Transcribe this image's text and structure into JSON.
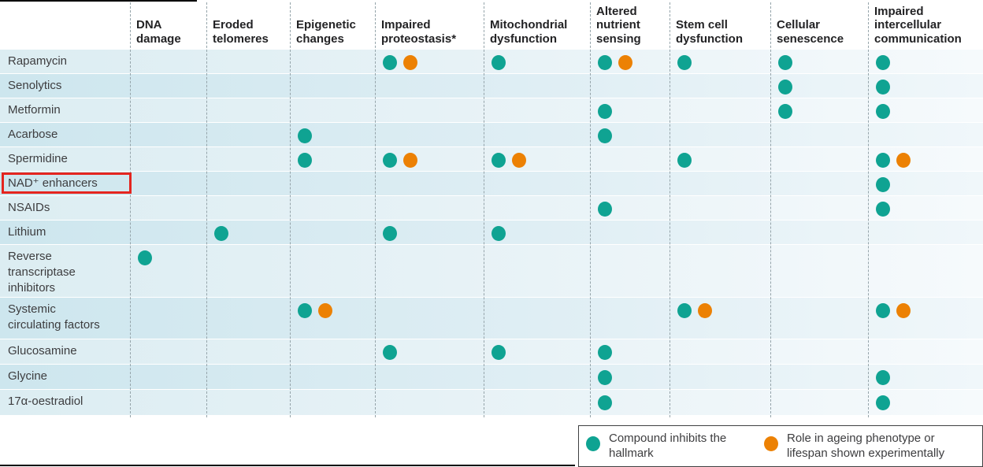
{
  "figure_title": "",
  "chart_data": {
    "type": "table",
    "title": "",
    "columns": [
      "DNA damage",
      "Eroded telomeres",
      "Epigenetic changes",
      "Impaired proteostasis*",
      "Mitochondrial dysfunction",
      "Altered nutrient sensing",
      "Stem cell dysfunction",
      "Cellular senescence",
      "Impaired intercellular communication"
    ],
    "cell_codes": {
      "T": "Compound inhibits the hallmark",
      "TO": "Compound inhibits the hallmark + Role in ageing phenotype or lifespan shown experimentally"
    },
    "rows": [
      {
        "label": "Rapamycin",
        "cells": [
          "",
          "",
          "",
          "TO",
          "T",
          "TO",
          "T",
          "T",
          "T"
        ]
      },
      {
        "label": "Senolytics",
        "cells": [
          "",
          "",
          "",
          "",
          "",
          "",
          "",
          "T",
          "T"
        ]
      },
      {
        "label": "Metformin",
        "cells": [
          "",
          "",
          "",
          "",
          "",
          "T",
          "",
          "T",
          "T"
        ]
      },
      {
        "label": "Acarbose",
        "cells": [
          "",
          "",
          "T",
          "",
          "",
          "T",
          "",
          "",
          ""
        ]
      },
      {
        "label": "Spermidine",
        "cells": [
          "",
          "",
          "T",
          "TO",
          "TO",
          "",
          "T",
          "",
          "TO"
        ]
      },
      {
        "label": "NAD⁺ enhancers",
        "cells": [
          "",
          "",
          "",
          "",
          "",
          "",
          "",
          "",
          "T"
        ]
      },
      {
        "label": "NSAIDs",
        "cells": [
          "",
          "",
          "",
          "",
          "",
          "T",
          "",
          "",
          "T"
        ]
      },
      {
        "label": "Lithium",
        "cells": [
          "",
          "T",
          "",
          "T",
          "T",
          "",
          "",
          "",
          ""
        ]
      },
      {
        "label": "Reverse transcriptase inhibitors",
        "cells": [
          "T",
          "",
          "",
          "",
          "",
          "",
          "",
          "",
          ""
        ]
      },
      {
        "label": "Systemic circulating factors",
        "cells": [
          "",
          "",
          "TO",
          "",
          "",
          "",
          "TO",
          "",
          "TO"
        ]
      },
      {
        "label": "Glucosamine",
        "cells": [
          "",
          "",
          "",
          "T",
          "T",
          "T",
          "",
          "",
          ""
        ]
      },
      {
        "label": "Glycine",
        "cells": [
          "",
          "",
          "",
          "",
          "",
          "T",
          "",
          "",
          "T"
        ]
      },
      {
        "label": "17α-oestradiol",
        "cells": [
          "",
          "",
          "",
          "",
          "",
          "T",
          "",
          "",
          "T"
        ]
      }
    ]
  },
  "annotation": {
    "highlighted_row": "NAD⁺ enhancers",
    "outline_color": "#e4251f"
  },
  "legend": {
    "items": [
      {
        "icon": "teal-dot",
        "color": "#0fa392",
        "label": "Compound inhibits the hallmark"
      },
      {
        "icon": "orange-dot",
        "color": "#ec8104",
        "label": "Role in ageing phenotype or lifespan shown experimentally"
      }
    ]
  },
  "colors": {
    "inhibit_dot": "#0fa392",
    "experimental_dot": "#ec8104"
  }
}
